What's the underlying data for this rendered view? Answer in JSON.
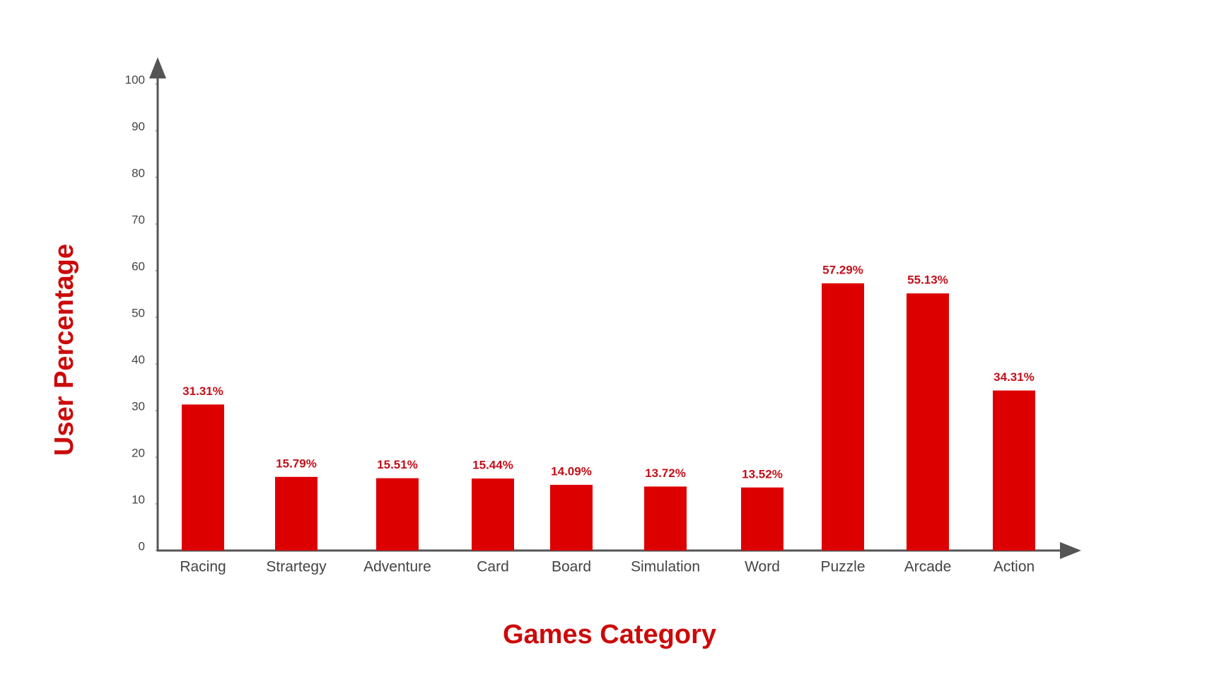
{
  "chart_data": {
    "type": "bar",
    "x_label": "Games Category",
    "y_label": "User Percentage",
    "categories": [
      "Racing",
      "Strartegy",
      "Adventure",
      "Card",
      "Board",
      "Simulation",
      "Word",
      "Puzzle",
      "Arcade",
      "Action"
    ],
    "values": [
      31.31,
      15.79,
      15.51,
      15.44,
      14.09,
      13.72,
      13.52,
      57.29,
      55.13,
      34.31
    ],
    "value_labels": [
      "31.31%",
      "15.79%",
      "15.51%",
      "15.44%",
      "14.09%",
      "13.72%",
      "13.52%",
      "57.29%",
      "55.13%",
      "34.31%"
    ],
    "color": "#dd0000",
    "ylim": [
      0,
      100
    ],
    "yticks": [
      0,
      10,
      20,
      30,
      40,
      50,
      60,
      70,
      80,
      90,
      100
    ],
    "grid": false
  }
}
